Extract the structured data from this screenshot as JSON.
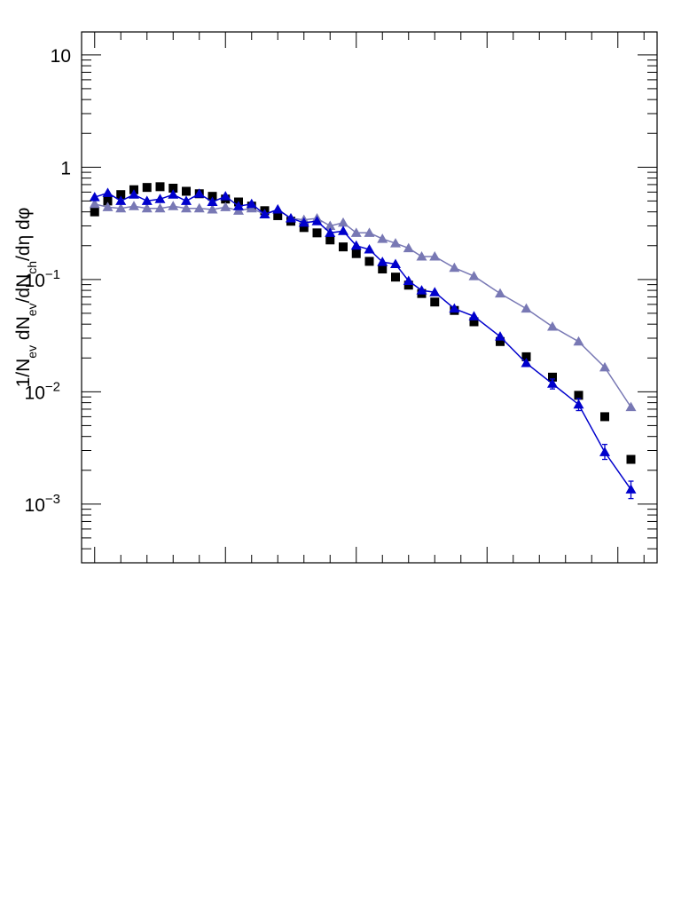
{
  "chart_data": {
    "type": "scatter",
    "title": "",
    "xlabel": "",
    "ylabel": {
      "base": "1/N",
      "ev1": "ev",
      "mid1": " dN",
      "ev2": "ev",
      "mid2": "/dN",
      "ch": "ch",
      "tail": "/dη dφ"
    },
    "yscale": "log",
    "ylim": [
      0.0003,
      16
    ],
    "xlim": [
      0,
      22
    ],
    "y_tick_labels": [
      {
        "value": 10,
        "base": "10",
        "exp": ""
      },
      {
        "value": 1,
        "base": "1",
        "exp": ""
      },
      {
        "value": 0.1,
        "base": "10",
        "exp": "−1"
      },
      {
        "value": 0.01,
        "base": "10",
        "exp": "−2"
      },
      {
        "value": 0.001,
        "base": "10",
        "exp": "−3"
      }
    ],
    "x_major_ticks": [
      0.5,
      5.5,
      10.5,
      15.5,
      20.5
    ],
    "x_minor_ticks": [
      1.5,
      2.5,
      3.5,
      4.5,
      6.5,
      7.5,
      8.5,
      9.5,
      11.5,
      12.5,
      13.5,
      14.5,
      16.5,
      17.5,
      18.5,
      19.5,
      21.5
    ],
    "grid": false,
    "legend": "none",
    "series": [
      {
        "marker": "square",
        "color": "#000000",
        "line": false,
        "points": [
          {
            "x": 0.5,
            "y": 0.4
          },
          {
            "x": 1.0,
            "y": 0.5
          },
          {
            "x": 1.5,
            "y": 0.57
          },
          {
            "x": 2.0,
            "y": 0.63
          },
          {
            "x": 2.5,
            "y": 0.66
          },
          {
            "x": 3.0,
            "y": 0.67
          },
          {
            "x": 3.5,
            "y": 0.65
          },
          {
            "x": 4.0,
            "y": 0.61
          },
          {
            "x": 4.5,
            "y": 0.58
          },
          {
            "x": 5.0,
            "y": 0.55
          },
          {
            "x": 5.5,
            "y": 0.52
          },
          {
            "x": 6.0,
            "y": 0.49
          },
          {
            "x": 6.5,
            "y": 0.45
          },
          {
            "x": 7.0,
            "y": 0.41
          },
          {
            "x": 7.5,
            "y": 0.37
          },
          {
            "x": 8.0,
            "y": 0.33
          },
          {
            "x": 8.5,
            "y": 0.29
          },
          {
            "x": 9.0,
            "y": 0.26
          },
          {
            "x": 9.5,
            "y": 0.225
          },
          {
            "x": 10.0,
            "y": 0.195
          },
          {
            "x": 10.5,
            "y": 0.17
          },
          {
            "x": 11.0,
            "y": 0.145
          },
          {
            "x": 11.5,
            "y": 0.124
          },
          {
            "x": 12.0,
            "y": 0.105
          },
          {
            "x": 12.5,
            "y": 0.089
          },
          {
            "x": 13.0,
            "y": 0.075
          },
          {
            "x": 13.5,
            "y": 0.063
          },
          {
            "x": 14.25,
            "y": 0.053
          },
          {
            "x": 15.0,
            "y": 0.042
          },
          {
            "x": 16.0,
            "y": 0.028
          },
          {
            "x": 17.0,
            "y": 0.0205
          },
          {
            "x": 18.0,
            "y": 0.0135
          },
          {
            "x": 19.0,
            "y": 0.0093
          },
          {
            "x": 20.0,
            "y": 0.006
          },
          {
            "x": 21.0,
            "y": 0.0025
          }
        ]
      },
      {
        "marker": "triangle",
        "color": "#7878b4",
        "line": true,
        "points": [
          {
            "x": 0.5,
            "y": 0.47
          },
          {
            "x": 1.0,
            "y": 0.44
          },
          {
            "x": 1.5,
            "y": 0.43
          },
          {
            "x": 2.0,
            "y": 0.45
          },
          {
            "x": 2.5,
            "y": 0.43
          },
          {
            "x": 3.0,
            "y": 0.43
          },
          {
            "x": 3.5,
            "y": 0.45
          },
          {
            "x": 4.0,
            "y": 0.43
          },
          {
            "x": 4.5,
            "y": 0.43
          },
          {
            "x": 5.0,
            "y": 0.42
          },
          {
            "x": 5.5,
            "y": 0.44
          },
          {
            "x": 6.0,
            "y": 0.41
          },
          {
            "x": 6.5,
            "y": 0.43
          },
          {
            "x": 7.0,
            "y": 0.38
          },
          {
            "x": 7.5,
            "y": 0.42
          },
          {
            "x": 8.0,
            "y": 0.35
          },
          {
            "x": 8.5,
            "y": 0.34
          },
          {
            "x": 9.0,
            "y": 0.35
          },
          {
            "x": 9.5,
            "y": 0.3
          },
          {
            "x": 10.0,
            "y": 0.32
          },
          {
            "x": 10.5,
            "y": 0.26
          },
          {
            "x": 11.0,
            "y": 0.26
          },
          {
            "x": 11.5,
            "y": 0.23
          },
          {
            "x": 12.0,
            "y": 0.21
          },
          {
            "x": 12.5,
            "y": 0.19
          },
          {
            "x": 13.0,
            "y": 0.16
          },
          {
            "x": 13.5,
            "y": 0.16
          },
          {
            "x": 14.25,
            "y": 0.127
          },
          {
            "x": 15.0,
            "y": 0.107
          },
          {
            "x": 16.0,
            "y": 0.075
          },
          {
            "x": 17.0,
            "y": 0.055
          },
          {
            "x": 18.0,
            "y": 0.038
          },
          {
            "x": 19.0,
            "y": 0.028
          },
          {
            "x": 20.0,
            "y": 0.0165
          },
          {
            "x": 21.0,
            "y": 0.0073
          }
        ]
      },
      {
        "marker": "triangle",
        "color": "#0000cc",
        "line": true,
        "points": [
          {
            "x": 0.5,
            "y": 0.54
          },
          {
            "x": 1.0,
            "y": 0.59
          },
          {
            "x": 1.5,
            "y": 0.5
          },
          {
            "x": 2.0,
            "y": 0.57
          },
          {
            "x": 2.5,
            "y": 0.5
          },
          {
            "x": 3.0,
            "y": 0.52
          },
          {
            "x": 3.5,
            "y": 0.57
          },
          {
            "x": 4.0,
            "y": 0.5
          },
          {
            "x": 4.5,
            "y": 0.58
          },
          {
            "x": 5.0,
            "y": 0.49
          },
          {
            "x": 5.5,
            "y": 0.55
          },
          {
            "x": 6.0,
            "y": 0.45
          },
          {
            "x": 6.5,
            "y": 0.47
          },
          {
            "x": 7.0,
            "y": 0.38
          },
          {
            "x": 7.5,
            "y": 0.42
          },
          {
            "x": 8.0,
            "y": 0.35
          },
          {
            "x": 8.5,
            "y": 0.32
          },
          {
            "x": 9.0,
            "y": 0.33
          },
          {
            "x": 9.5,
            "y": 0.26
          },
          {
            "x": 10.0,
            "y": 0.27
          },
          {
            "x": 10.5,
            "y": 0.2
          },
          {
            "x": 11.0,
            "y": 0.185
          },
          {
            "x": 11.5,
            "y": 0.143
          },
          {
            "x": 12.0,
            "y": 0.137
          },
          {
            "x": 12.5,
            "y": 0.097
          },
          {
            "x": 13.0,
            "y": 0.08
          },
          {
            "x": 13.5,
            "y": 0.077
          },
          {
            "x": 14.25,
            "y": 0.055
          },
          {
            "x": 15.0,
            "y": 0.047
          },
          {
            "x": 16.0,
            "y": 0.031
          },
          {
            "x": 17.0,
            "y": 0.018
          },
          {
            "x": 18.0,
            "y": 0.0118
          },
          {
            "x": 19.0,
            "y": 0.0077
          },
          {
            "x": 20.0,
            "y": 0.0029
          },
          {
            "x": 21.0,
            "y": 0.00135
          }
        ],
        "errors": [
          {
            "x": 20.0,
            "lo": 0.0025,
            "hi": 0.0034
          },
          {
            "x": 21.0,
            "lo": 0.00112,
            "hi": 0.0016
          },
          {
            "x": 19.0,
            "lo": 0.0068,
            "hi": 0.0087
          },
          {
            "x": 18.0,
            "lo": 0.0106,
            "hi": 0.013
          }
        ]
      }
    ]
  }
}
